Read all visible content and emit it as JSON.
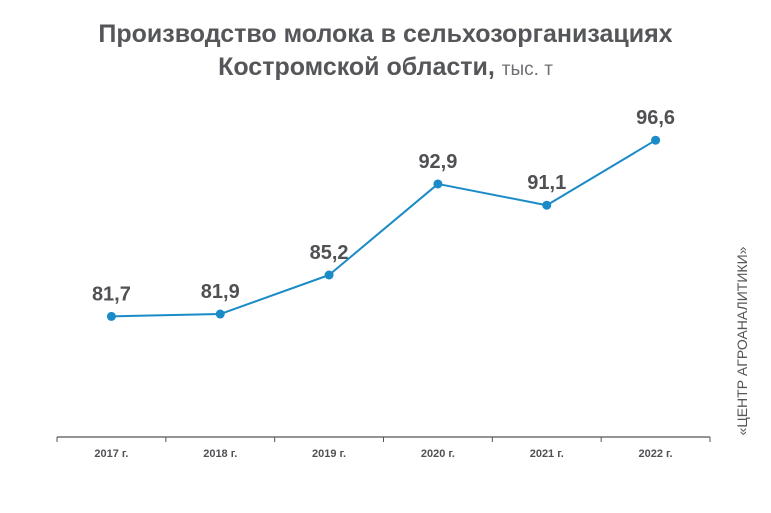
{
  "title_line1": "Производство молока в сельхозорганизациях",
  "title_line2": "Костромской области,",
  "title_unit": "тыс. т",
  "source": "«ЦЕНТР АГРОАНАЛИТИКИ»",
  "colors": {
    "line": "#1a8bc7",
    "text": "#555659",
    "axis": "#555555"
  },
  "chart_data": {
    "type": "line",
    "title": "Производство молока в сельхозорганизациях Костромской области, тыс. т",
    "categories": [
      "2017 г.",
      "2018 г.",
      "2019 г.",
      "2020 г.",
      "2021 г.",
      "2022 г."
    ],
    "series": [
      {
        "values": [
          81.7,
          81.9,
          85.2,
          92.9,
          91.1,
          96.6
        ]
      }
    ],
    "data_labels": [
      "81,7",
      "81,9",
      "85,2",
      "92,9",
      "91,1",
      "96,6"
    ],
    "ylim": [
      71.5,
      100
    ],
    "grid": false,
    "legend": "none"
  }
}
